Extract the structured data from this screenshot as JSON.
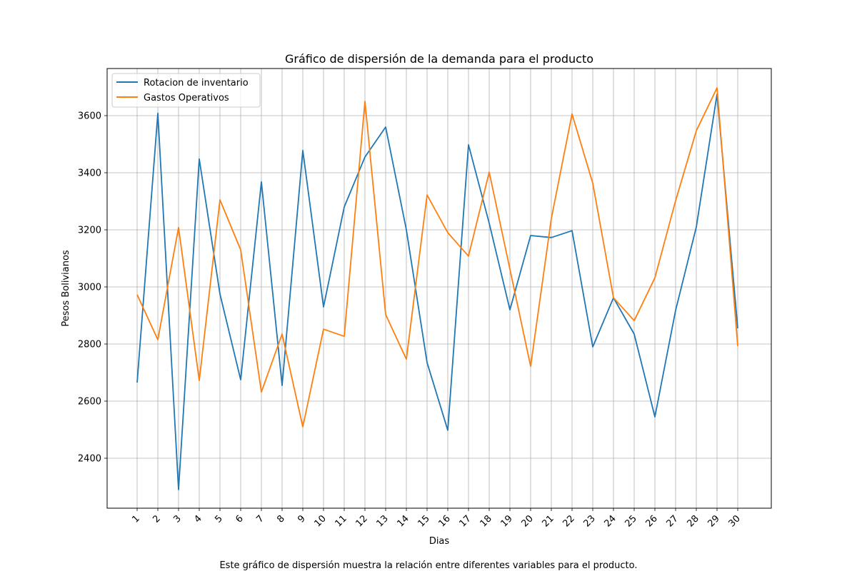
{
  "chart_data": {
    "type": "line",
    "title": "Gráfico de dispersión de la demanda para el producto",
    "xlabel": "Dias",
    "ylabel": "Pesos Bolivianos",
    "caption": "Este gráfico de dispersión muestra la relación entre diferentes variables para el producto.",
    "categories": [
      "1",
      "2",
      "3",
      "4",
      "5",
      "6",
      "7",
      "8",
      "9",
      "10",
      "11",
      "12",
      "13",
      "14",
      "15",
      "16",
      "17",
      "18",
      "19",
      "20",
      "21",
      "22",
      "23",
      "24",
      "25",
      "26",
      "27",
      "28",
      "29",
      "30"
    ],
    "ylim": [
      2225,
      3765
    ],
    "yticks": [
      2400,
      2600,
      2800,
      3000,
      3200,
      3400,
      3600
    ],
    "grid": true,
    "legend_position": "upper-left",
    "series": [
      {
        "name": "Rotacion de inventario",
        "color": "#1f77b4",
        "values": [
          2665,
          3608,
          2290,
          3448,
          2975,
          2675,
          3368,
          2655,
          3478,
          2930,
          3280,
          3455,
          3560,
          3200,
          2735,
          2498,
          3498,
          3223,
          2920,
          3180,
          3173,
          3197,
          2790,
          2962,
          2835,
          2545,
          2918,
          3210,
          3675,
          2855
        ]
      },
      {
        "name": "Gastos Operativos",
        "color": "#ff7f0e",
        "values": [
          2973,
          2815,
          3208,
          2672,
          3305,
          3130,
          2632,
          2835,
          2510,
          2852,
          2827,
          3650,
          2903,
          2747,
          3322,
          3190,
          3108,
          3402,
          3062,
          2722,
          3240,
          3606,
          3363,
          2962,
          2882,
          3032,
          3302,
          3547,
          3697,
          2793
        ]
      }
    ]
  }
}
